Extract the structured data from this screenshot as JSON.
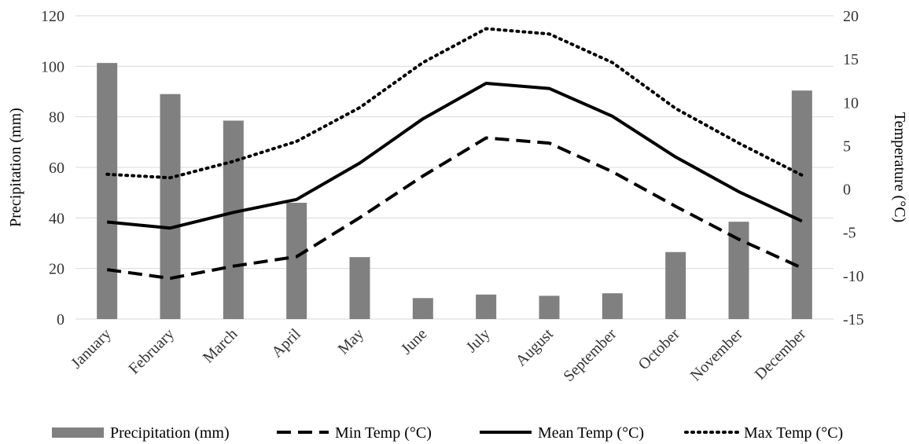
{
  "chart_data": {
    "type": "bar",
    "categories": [
      "January",
      "February",
      "March",
      "April",
      "May",
      "June",
      "July",
      "August",
      "September",
      "October",
      "November",
      "December"
    ],
    "series": [
      {
        "name": "Precipitation (mm)",
        "type": "bar",
        "axis": "left",
        "values": [
          101.3,
          89.0,
          78.5,
          46.0,
          24.5,
          8.3,
          9.7,
          9.2,
          10.2,
          26.5,
          38.5,
          90.4
        ]
      },
      {
        "name": "Min Temp (°C)",
        "type": "line",
        "axis": "right",
        "style": "dashed",
        "values": [
          -9.3,
          -10.3,
          -8.9,
          -7.8,
          -3.3,
          1.5,
          5.9,
          5.3,
          2.0,
          -2.0,
          -5.8,
          -9.1
        ]
      },
      {
        "name": "Mean Temp (°C)",
        "type": "line",
        "axis": "right",
        "style": "solid",
        "values": [
          -3.8,
          -4.5,
          -2.7,
          -1.2,
          3.0,
          8.1,
          12.2,
          11.6,
          8.4,
          3.7,
          -0.3,
          -3.7
        ]
      },
      {
        "name": "Max Temp (°C)",
        "type": "line",
        "axis": "right",
        "style": "dotted",
        "values": [
          1.7,
          1.3,
          3.2,
          5.5,
          9.4,
          14.6,
          18.5,
          17.9,
          14.6,
          9.3,
          5.3,
          1.6
        ]
      }
    ],
    "ylabel": "Precipitation (mm)",
    "ylim": [
      0,
      120
    ],
    "yticks": [
      0,
      20,
      40,
      60,
      80,
      100,
      120
    ],
    "y2label": "Temperature (°C)",
    "y2lim": [
      -15,
      20
    ],
    "y2ticks": [
      -15,
      -10,
      -5,
      0,
      5,
      10,
      15,
      20
    ],
    "grid": true,
    "legend_position": "bottom",
    "colors": {
      "bar": "#808080",
      "line": "#000000",
      "grid": "#d9d9d9"
    }
  }
}
